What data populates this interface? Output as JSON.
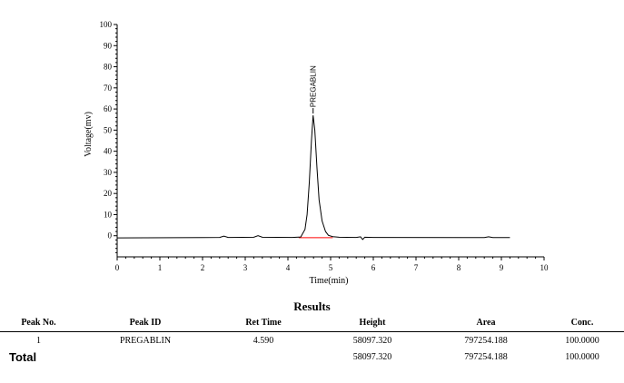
{
  "chart_data": {
    "type": "line",
    "xlabel": "Time(min)",
    "ylabel": "Voltage(mv)",
    "xlim": [
      0,
      10
    ],
    "ylim": [
      -10,
      100
    ],
    "xticks": [
      0,
      1,
      2,
      3,
      4,
      5,
      6,
      7,
      8,
      9,
      10
    ],
    "yticks": [
      0,
      10,
      20,
      30,
      40,
      50,
      60,
      70,
      80,
      90,
      100
    ],
    "series": [
      {
        "color": "#000000",
        "x": [
          0.0,
          2.0,
          2.4,
          2.5,
          2.6,
          3.2,
          3.3,
          3.4,
          4.1,
          4.3,
          4.4,
          4.45,
          4.5,
          4.55,
          4.59,
          4.63,
          4.68,
          4.73,
          4.8,
          4.88,
          4.95,
          5.05,
          5.2,
          5.6,
          5.7,
          5.75,
          5.8,
          6.0,
          8.6,
          8.7,
          8.8,
          9.2
        ],
        "y": [
          -1.0,
          -0.9,
          -0.8,
          -0.2,
          -0.8,
          -0.7,
          0.0,
          -0.7,
          -0.8,
          -0.6,
          3,
          10,
          25,
          45,
          57,
          50,
          32,
          17,
          7,
          2,
          0.2,
          -0.4,
          -0.7,
          -0.8,
          -0.5,
          -1.8,
          -0.7,
          -0.8,
          -0.9,
          -0.5,
          -0.9,
          -0.9
        ]
      }
    ],
    "baseline": {
      "color": "#ff0000",
      "x": [
        4.25,
        5.05
      ],
      "y": [
        -0.9,
        -0.9
      ]
    },
    "annotations": [
      {
        "text": "PREGABLIN",
        "x": 4.59,
        "y": 57
      }
    ]
  },
  "results": {
    "title": "Results",
    "headers": [
      "Peak No.",
      "Peak ID",
      "Ret Time",
      "Height",
      "Area",
      "Conc."
    ],
    "rows": [
      [
        "1",
        "PREGABLIN",
        "4.590",
        "58097.320",
        "797254.188",
        "100.0000"
      ]
    ],
    "total": {
      "label": "Total",
      "height": "58097.320",
      "area": "797254.188",
      "conc": "100.0000"
    }
  }
}
